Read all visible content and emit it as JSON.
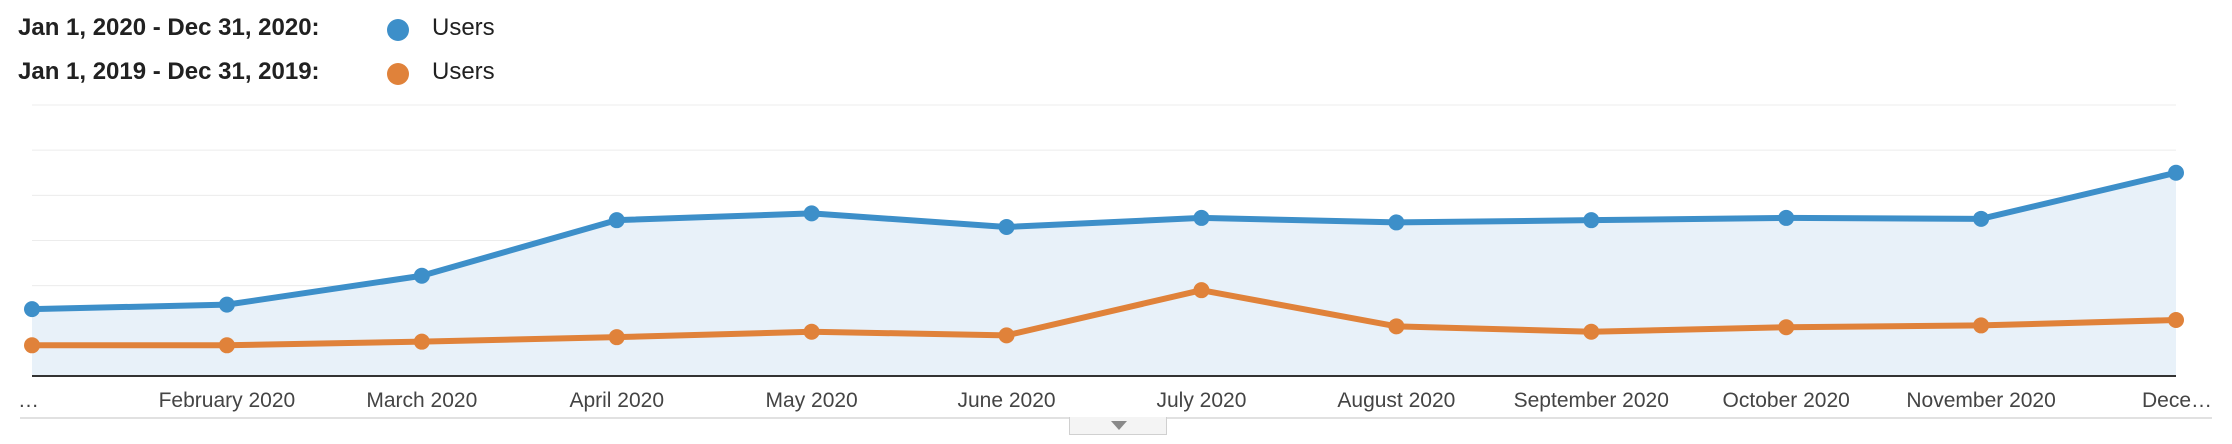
{
  "legend": {
    "current": {
      "range": "Jan 1, 2020 - Dec 31, 2020:",
      "series": "Users",
      "color": "#3d8fc9"
    },
    "previous": {
      "range": "Jan 1, 2019 - Dec 31, 2019:",
      "series": "Users",
      "color": "#e0823a"
    }
  },
  "chart_data": {
    "type": "line",
    "x_tick_labels": [
      "…",
      "February 2020",
      "March 2020",
      "April 2020",
      "May 2020",
      "June 2020",
      "July 2020",
      "August 2020",
      "September 2020",
      "October 2020",
      "November 2020",
      "Dece…"
    ],
    "series": [
      {
        "name": "Users",
        "period": "Jan 1, 2020 - Dec 31, 2020",
        "color": "#3d8fc9",
        "area_fill": "#e8f1f9",
        "values": [
          14.8,
          15.8,
          22.2,
          34.5,
          36.0,
          33.0,
          35.0,
          34.0,
          34.5,
          35.0,
          34.8,
          45.0
        ]
      },
      {
        "name": "Users",
        "period": "Jan 1, 2019 - Dec 31, 2019",
        "color": "#e0823a",
        "values": [
          6.8,
          6.8,
          7.6,
          8.6,
          9.8,
          9.0,
          19.0,
          11.0,
          9.8,
          10.8,
          11.2,
          12.4
        ]
      }
    ],
    "ylim": [
      0,
      60
    ],
    "y_tick_labels_visible": false,
    "grid": true,
    "legend_position": "top-left"
  }
}
